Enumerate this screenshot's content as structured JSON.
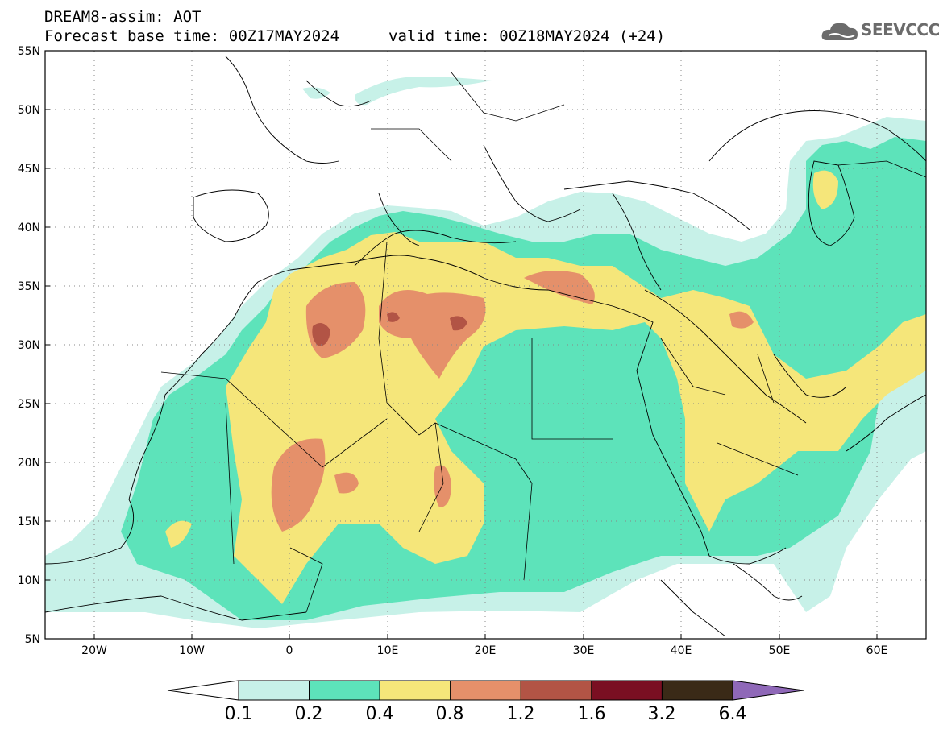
{
  "header": {
    "title": "DREAM8-assim: AOT",
    "base_time": "Forecast base time: 00Z17MAY2024",
    "valid_time": "valid time: 00Z18MAY2024 (+24)",
    "logo_text": "SEEVCCC",
    "logo_icon": "cloud-logo-icon"
  },
  "map": {
    "lon_range": [
      -25,
      65
    ],
    "lat_range": [
      5,
      55
    ],
    "lat_labels": [
      "55N",
      "50N",
      "45N",
      "40N",
      "35N",
      "30N",
      "25N",
      "20N",
      "15N",
      "10N",
      "5N"
    ],
    "lon_labels": [
      "20W",
      "10W",
      "0",
      "10E",
      "20E",
      "30E",
      "40E",
      "50E",
      "60E"
    ],
    "grid": true
  },
  "colorbar": {
    "labels": [
      "0.1",
      "0.2",
      "0.4",
      "0.8",
      "1.2",
      "1.6",
      "3.2",
      "6.4"
    ],
    "colors": [
      "#c7f1e8",
      "#5de3ba",
      "#f5e67a",
      "#e5906a",
      "#b25445",
      "#7a0f22",
      "#3a2a17"
    ],
    "arrow_left_color": "#ffffff",
    "arrow_right_color": "#8f68b8"
  }
}
